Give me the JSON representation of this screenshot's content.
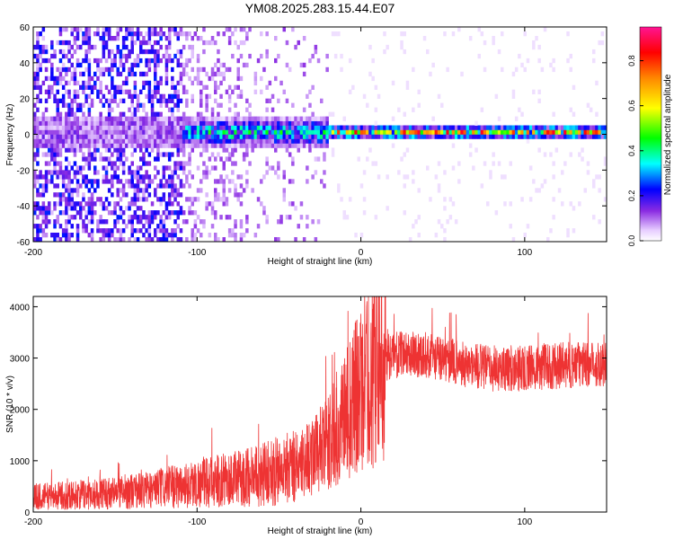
{
  "figure_title": "YM08.2025.283.15.44.E07",
  "colors": {
    "snr_line": "#ee3333",
    "axis": "#000000",
    "background": "#ffffff"
  },
  "chart_data": [
    {
      "type": "heatmap",
      "title": "YM08.2025.283.15.44.E07",
      "xlabel": "Height of straight line (km)",
      "ylabel": "Frequency (Hz)",
      "xlim": [
        -200,
        150
      ],
      "ylim": [
        -60,
        60
      ],
      "xticks": [
        -200,
        -100,
        0,
        100
      ],
      "yticks": [
        -60,
        -40,
        -20,
        0,
        20,
        40,
        60
      ],
      "colorbar": {
        "label": "Normalized spectral amplitude",
        "range": [
          0.0,
          0.95
        ],
        "ticks": [
          0.0,
          0.2,
          0.4,
          0.6,
          0.8
        ],
        "tick_labels": [
          "0.0",
          "0.2",
          "0.4",
          "0.6",
          "0.8"
        ],
        "colormap": "rainbow"
      },
      "description_bands": [
        {
          "x_range": [
            -200,
            -110
          ],
          "freq_spread_hz": 60,
          "typical_amplitude": 0.1
        },
        {
          "x_range": [
            -110,
            -20
          ],
          "freq_spread_hz": 10,
          "typical_amplitude": 0.3
        },
        {
          "x_range": [
            -20,
            150
          ],
          "freq_spread_hz": 4,
          "typical_amplitude": 0.55
        }
      ]
    },
    {
      "type": "line",
      "xlabel": "Height of straight line (km)",
      "ylabel": "SNR (10 * v/v)",
      "xlim": [
        -200,
        150
      ],
      "ylim": [
        0,
        4200
      ],
      "xticks": [
        -200,
        -100,
        0,
        100
      ],
      "yticks": [
        0,
        1000,
        2000,
        3000,
        4000
      ],
      "series": [
        {
          "name": "SNR",
          "x": [
            -200,
            -175,
            -150,
            -125,
            -100,
            -75,
            -50,
            -35,
            -20,
            -10,
            0,
            5,
            10,
            20,
            30,
            40,
            60,
            80,
            100,
            120,
            150
          ],
          "y": [
            300,
            330,
            380,
            450,
            550,
            650,
            800,
            1000,
            1300,
            1900,
            2400,
            2650,
            2950,
            3050,
            3100,
            3050,
            2900,
            2800,
            2800,
            2850,
            2900
          ]
        }
      ]
    }
  ]
}
